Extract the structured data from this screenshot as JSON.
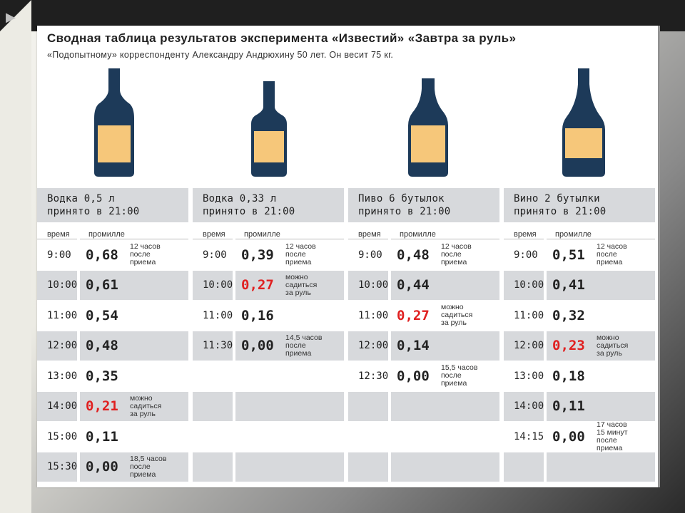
{
  "header": {
    "title": "Сводная таблица результатов эксперимента «Известий» «Завтра за руль»",
    "subtitle": "«Подопытному» корреспонденту Александру Андрюхину 50 лет. Он весит 75 кг."
  },
  "colors": {
    "bottle": "#1d3a59",
    "label": "#f6c77a",
    "shade": "#d7d9dc",
    "highlight": "#e02020"
  },
  "columns_header": {
    "time": "время",
    "promille": "промилле"
  },
  "columns": [
    {
      "drink": "Водка 0,5 л",
      "taken": "принято в 21:00",
      "rows": [
        {
          "time": "9:00",
          "value": "0,68",
          "note": "12 часов\nпосле\nприема",
          "red": false
        },
        {
          "time": "10:00",
          "value": "0,61",
          "note": "",
          "red": false
        },
        {
          "time": "11:00",
          "value": "0,54",
          "note": "",
          "red": false
        },
        {
          "time": "12:00",
          "value": "0,48",
          "note": "",
          "red": false
        },
        {
          "time": "13:00",
          "value": "0,35",
          "note": "",
          "red": false
        },
        {
          "time": "14:00",
          "value": "0,21",
          "note": "можно\nсадиться\nза руль",
          "red": true
        },
        {
          "time": "15:00",
          "value": "0,11",
          "note": "",
          "red": false
        },
        {
          "time": "15:30",
          "value": "0,00",
          "note": "18,5 часов\nпосле\nприема",
          "red": false
        }
      ]
    },
    {
      "drink": "Водка 0,33 л",
      "taken": "принято в 21:00",
      "rows": [
        {
          "time": "9:00",
          "value": "0,39",
          "note": "12 часов\nпосле\nприема",
          "red": false
        },
        {
          "time": "10:00",
          "value": "0,27",
          "note": "можно\nсадиться\nза руль",
          "red": true
        },
        {
          "time": "11:00",
          "value": "0,16",
          "note": "",
          "red": false
        },
        {
          "time": "11:30",
          "value": "0,00",
          "note": "14,5 часов\nпосле\nприема",
          "red": false
        },
        {
          "time": "",
          "value": "",
          "note": "",
          "red": false
        },
        {
          "time": "",
          "value": "",
          "note": "",
          "red": false
        },
        {
          "time": "",
          "value": "",
          "note": "",
          "red": false
        },
        {
          "time": "",
          "value": "",
          "note": "",
          "red": false
        }
      ]
    },
    {
      "drink": "Пиво 6 бутылок",
      "taken": "принято в 21:00",
      "rows": [
        {
          "time": "9:00",
          "value": "0,48",
          "note": "12 часов\nпосле\nприема",
          "red": false
        },
        {
          "time": "10:00",
          "value": "0,44",
          "note": "",
          "red": false
        },
        {
          "time": "11:00",
          "value": "0,27",
          "note": "можно\nсадиться\nза руль",
          "red": true
        },
        {
          "time": "12:00",
          "value": "0,14",
          "note": "",
          "red": false
        },
        {
          "time": "12:30",
          "value": "0,00",
          "note": "15,5 часов\nпосле\nприема",
          "red": false
        },
        {
          "time": "",
          "value": "",
          "note": "",
          "red": false
        },
        {
          "time": "",
          "value": "",
          "note": "",
          "red": false
        },
        {
          "time": "",
          "value": "",
          "note": "",
          "red": false
        }
      ]
    },
    {
      "drink": "Вино 2 бутылки",
      "taken": "принято в 21:00",
      "rows": [
        {
          "time": "9:00",
          "value": "0,51",
          "note": "12 часов\nпосле\nприема",
          "red": false
        },
        {
          "time": "10:00",
          "value": "0,41",
          "note": "",
          "red": false
        },
        {
          "time": "11:00",
          "value": "0,32",
          "note": "",
          "red": false
        },
        {
          "time": "12:00",
          "value": "0,23",
          "note": "можно\nсадиться\nза руль",
          "red": true
        },
        {
          "time": "13:00",
          "value": "0,18",
          "note": "",
          "red": false
        },
        {
          "time": "14:00",
          "value": "0,11",
          "note": "",
          "red": false
        },
        {
          "time": "14:15",
          "value": "0,00",
          "note": "17 часов\n15 минут\nпосле\nприема",
          "red": false
        },
        {
          "time": "",
          "value": "",
          "note": "",
          "red": false
        }
      ]
    }
  ]
}
